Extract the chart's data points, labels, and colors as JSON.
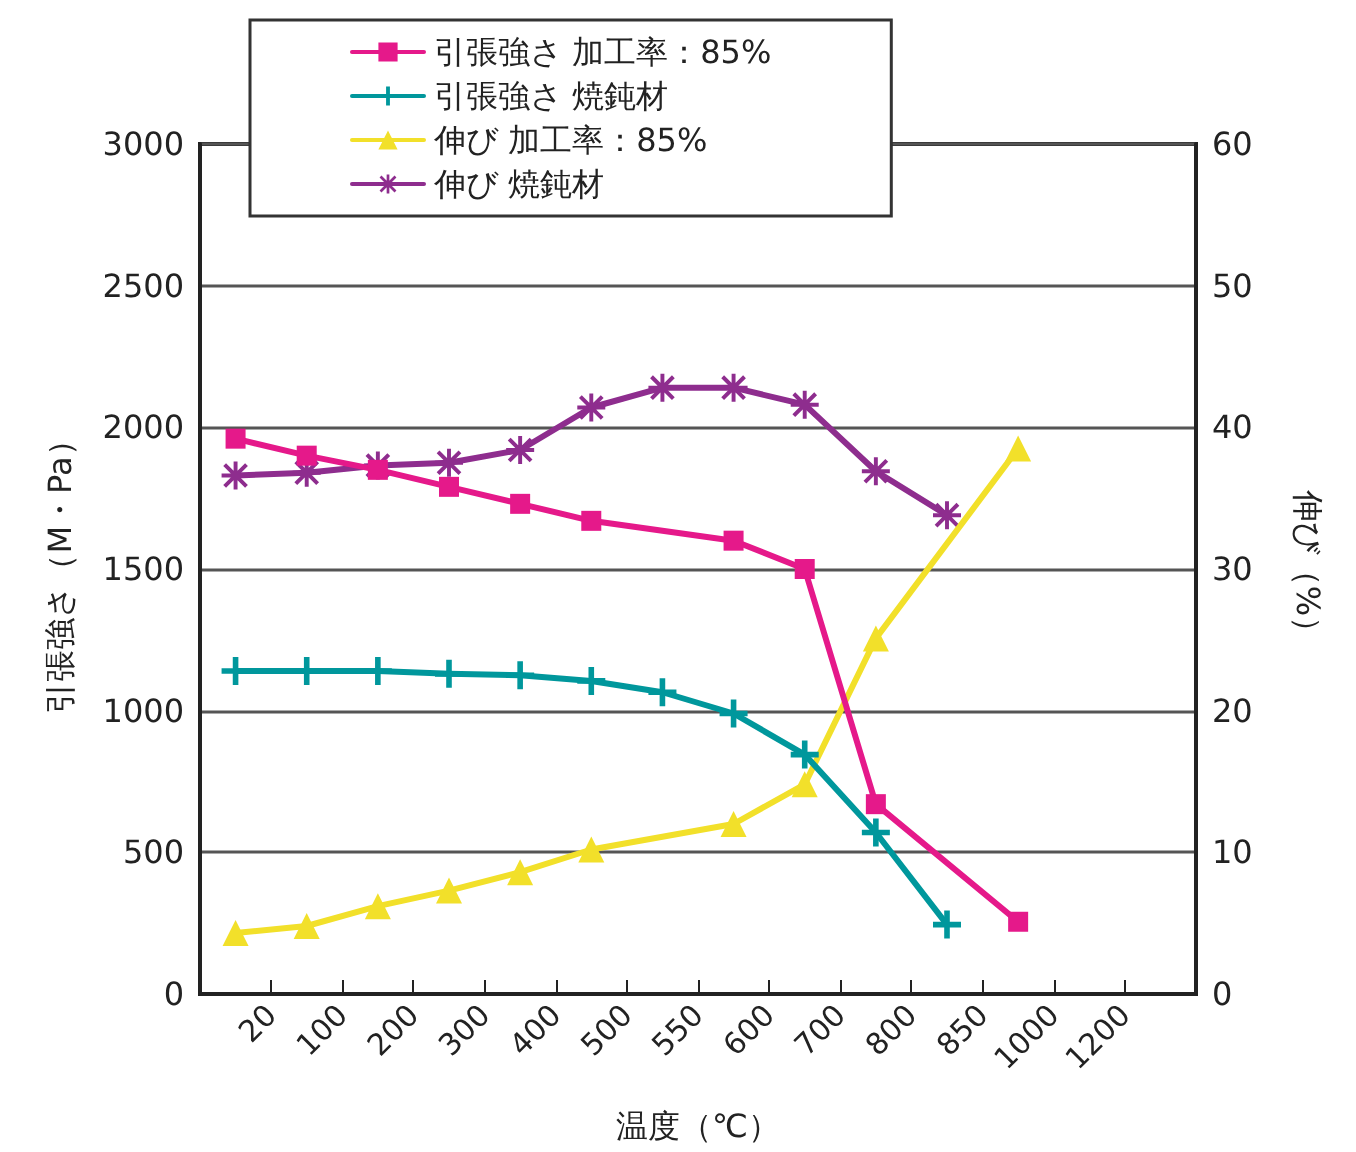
{
  "chart_data": {
    "type": "line",
    "xlabel": "温度（℃）",
    "ylabel": "引張強さ（M・Pa）",
    "y2label": "伸び（%）",
    "categories": [
      null,
      null,
      "20",
      null,
      "100",
      null,
      "200",
      null,
      "300",
      null,
      "400",
      null,
      "500",
      null,
      "550",
      null,
      "600",
      null,
      "700",
      null,
      "800",
      null,
      "850",
      null,
      "1000",
      null,
      "1200",
      null,
      null
    ],
    "series": [
      {
        "name": "引張強さ 加工率：85%",
        "color": "#e5198a",
        "marker": "square",
        "values": [
          null,
          1960,
          null,
          1900,
          null,
          1850,
          null,
          1790,
          null,
          1730,
          null,
          1670,
          null,
          null,
          null,
          1600,
          null,
          1500,
          null,
          670,
          null,
          null,
          null,
          255,
          null,
          null,
          null,
          null,
          null
        ]
      },
      {
        "name": "引張強さ 焼鈍材",
        "color": "#00979c",
        "marker": "cross",
        "values": [
          null,
          1140,
          null,
          1140,
          null,
          1140,
          null,
          1130,
          null,
          1125,
          null,
          1105,
          null,
          1065,
          null,
          990,
          null,
          845,
          null,
          570,
          null,
          245,
          null,
          null,
          null,
          null,
          null,
          null,
          null
        ]
      },
      {
        "name": "伸び 加工率：85%",
        "color": "#f2e02a",
        "marker": "triangle",
        "axis": "y2",
        "values": [
          null,
          4.3,
          null,
          4.8,
          null,
          6.2,
          null,
          7.3,
          null,
          8.6,
          null,
          10.2,
          null,
          null,
          null,
          12.0,
          null,
          14.8,
          null,
          25.1,
          null,
          null,
          null,
          38.5,
          null,
          null,
          null,
          null,
          null
        ]
      },
      {
        "name": "伸び 焼鈍材",
        "color": "#8e2d8e",
        "marker": "star",
        "axis": "y2",
        "values": [
          null,
          36.6,
          null,
          36.8,
          null,
          37.3,
          null,
          37.5,
          null,
          38.4,
          null,
          41.4,
          null,
          42.8,
          null,
          42.8,
          null,
          41.6,
          null,
          36.9,
          null,
          33.8,
          null,
          null,
          null,
          null,
          null,
          null,
          null
        ]
      }
    ],
    "ylim": [
      0,
      3000
    ],
    "yticks": [
      0,
      500,
      1000,
      1500,
      2000,
      2500,
      3000
    ],
    "y2lim": [
      0,
      60
    ],
    "y2ticks": [
      0,
      10,
      20,
      30,
      40,
      50,
      60
    ],
    "grid": "y",
    "legend": "top"
  }
}
